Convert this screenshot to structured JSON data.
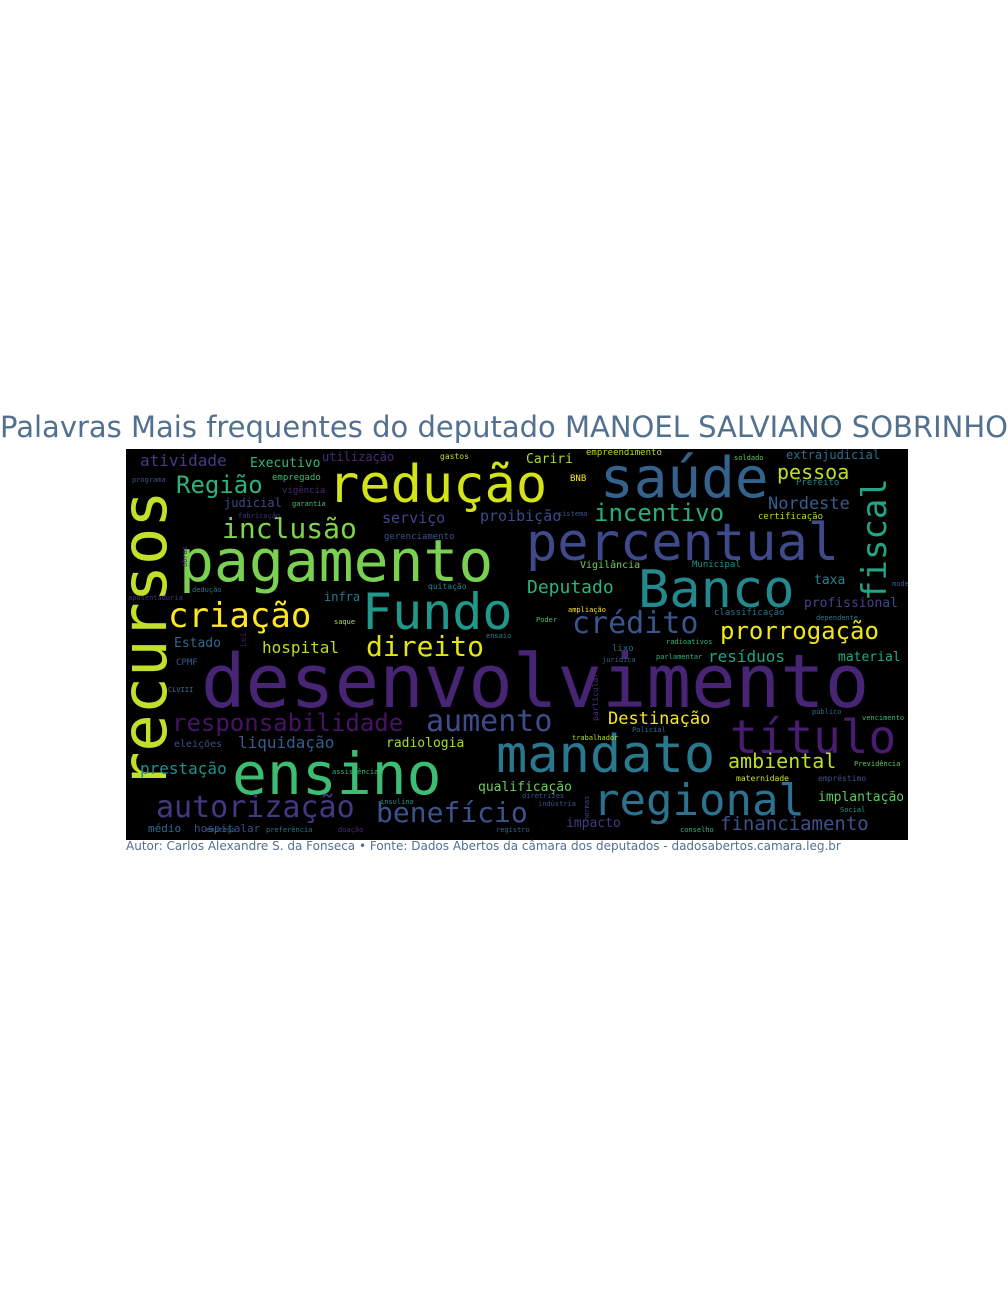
{
  "title": "Palavras Mais frequentes do deputado MANOEL SALVIANO SOBRINHO",
  "caption": "Autor: Carlos Alexandre S. da Fonseca • Fonte: Dados Abertos da câmara dos deputados - dadosabertos.camara.leg.br",
  "wordcloud": {
    "background": "#000000",
    "words": [
      {
        "text": "desenvolvimento",
        "color": "#482475"
      },
      {
        "text": "recursos",
        "color": "#c4df2a"
      },
      {
        "text": "pagamento",
        "color": "#7ad151"
      },
      {
        "text": "redução",
        "color": "#d2e21b"
      },
      {
        "text": "saúde",
        "color": "#33638d"
      },
      {
        "text": "percentual",
        "color": "#3f4a8a"
      },
      {
        "text": "Banco",
        "color": "#23898e"
      },
      {
        "text": "Fundo",
        "color": "#1f998a"
      },
      {
        "text": "ensino",
        "color": "#3dbc74"
      },
      {
        "text": "mandato",
        "color": "#2a788e"
      },
      {
        "text": "título",
        "color": "#481c6e"
      },
      {
        "text": "regional",
        "color": "#2c728e"
      },
      {
        "text": "fiscal",
        "color": "#21a585"
      },
      {
        "text": "criação",
        "color": "#fde725"
      },
      {
        "text": "autorização",
        "color": "#453781"
      },
      {
        "text": "benefício",
        "color": "#3b528b"
      },
      {
        "text": "aumento",
        "color": "#3e4c8a"
      },
      {
        "text": "crédito",
        "color": "#39558c"
      },
      {
        "text": "direito",
        "color": "#e2e418"
      },
      {
        "text": "inclusão",
        "color": "#7fd34e"
      },
      {
        "text": "Região",
        "color": "#2db27d"
      },
      {
        "text": "prorrogação",
        "color": "#f1e51d"
      },
      {
        "text": "responsabilidade",
        "color": "#471365"
      },
      {
        "text": "incentivo",
        "color": "#27ad81"
      },
      {
        "text": "pessoa",
        "color": "#bddf26"
      },
      {
        "text": "ambiental",
        "color": "#c0df25"
      },
      {
        "text": "Nordeste",
        "color": "#355f8d"
      },
      {
        "text": "financiamento",
        "color": "#3b528b"
      },
      {
        "text": "prestação",
        "color": "#21908d"
      },
      {
        "text": "Deputado",
        "color": "#2db27d"
      },
      {
        "text": "Destinação",
        "color": "#f8e621"
      },
      {
        "text": "hospital",
        "color": "#b8de29"
      },
      {
        "text": "liquidação",
        "color": "#365c8d"
      },
      {
        "text": "resíduos",
        "color": "#20a486"
      },
      {
        "text": "atividade",
        "color": "#433e85"
      },
      {
        "text": "serviço",
        "color": "#414487"
      },
      {
        "text": "proibição",
        "color": "#3e4a89"
      },
      {
        "text": "qualificação",
        "color": "#6ece58"
      },
      {
        "text": "implantação",
        "color": "#5ec962"
      },
      {
        "text": "radiologia",
        "color": "#a5db36"
      },
      {
        "text": "Executivo",
        "color": "#35b779"
      },
      {
        "text": "Estado",
        "color": "#31668e"
      },
      {
        "text": "impacto",
        "color": "#443a83"
      },
      {
        "text": "material",
        "color": "#22a884"
      },
      {
        "text": "profissional",
        "color": "#404688"
      },
      {
        "text": "infra",
        "color": "#2a788e"
      },
      {
        "text": "Cariri",
        "color": "#a8db34"
      },
      {
        "text": "taxa",
        "color": "#26828e"
      },
      {
        "text": "hospitalar",
        "color": "#3e4989"
      },
      {
        "text": "médio",
        "color": "#2f6c8e"
      },
      {
        "text": "extrajudicial",
        "color": "#2e6f8e"
      },
      {
        "text": "judicial",
        "color": "#3e4989"
      },
      {
        "text": "utilização",
        "color": "#472d7b"
      },
      {
        "text": "eleições",
        "color": "#3b518b"
      },
      {
        "text": "Vigilância",
        "color": "#75d054"
      },
      {
        "text": "empreendimento",
        "color": "#b5de2b"
      },
      {
        "text": "gerenciamento",
        "color": "#3b528b"
      },
      {
        "text": "classificação",
        "color": "#2c738e"
      },
      {
        "text": "certificação",
        "color": "#b8de29"
      },
      {
        "text": "empregado",
        "color": "#40bd72"
      },
      {
        "text": "vigência",
        "color": "#482677"
      },
      {
        "text": "Prefeito",
        "color": "#23898e"
      },
      {
        "text": "Municipal",
        "color": "#21918c"
      },
      {
        "text": "maternidade",
        "color": "#d0e11c"
      },
      {
        "text": "empréstimo",
        "color": "#3b528b"
      },
      {
        "text": "gastos",
        "color": "#c2df23"
      },
      {
        "text": "lixo",
        "color": "#31688e"
      },
      {
        "text": "CPMF",
        "color": "#38598c"
      },
      {
        "text": "quitação",
        "color": "#26828e"
      },
      {
        "text": "BNB",
        "color": "#fde725"
      },
      {
        "text": "particular",
        "color": "#472c7a"
      },
      {
        "text": "fabricação",
        "color": "#46337f"
      },
      {
        "text": "garantia",
        "color": "#4ac16d"
      },
      {
        "text": "Previdência",
        "color": "#5ec962"
      },
      {
        "text": "radioativos",
        "color": "#35b779"
      },
      {
        "text": "parlamentar",
        "color": "#2db27d"
      },
      {
        "text": "jurídica",
        "color": "#34618d"
      },
      {
        "text": "trabalhador",
        "color": "#b5de2b"
      },
      {
        "text": "Social",
        "color": "#1fa088"
      },
      {
        "text": "dependente",
        "color": "#2a788e"
      },
      {
        "text": "emprego",
        "color": "#2c738e"
      },
      {
        "text": "programa",
        "color": "#3b528b"
      },
      {
        "text": "CLVIII",
        "color": "#2d708e"
      },
      {
        "text": "dedução",
        "color": "#2a768e"
      },
      {
        "text": "assistência",
        "color": "#35b779"
      },
      {
        "text": "ampliação",
        "color": "#fde725"
      },
      {
        "text": "registro",
        "color": "#32658e"
      },
      {
        "text": "saque",
        "color": "#b5de2b"
      },
      {
        "text": "preferência",
        "color": "#2a788e"
      },
      {
        "text": "doação",
        "color": "#472d7b"
      },
      {
        "text": "conselho",
        "color": "#35b779"
      },
      {
        "text": "aposentadoria",
        "color": "#46327e"
      },
      {
        "text": "soldado",
        "color": "#5ec962"
      },
      {
        "text": "insulina",
        "color": "#21918c"
      },
      {
        "text": "sistema",
        "color": "#3b528b"
      },
      {
        "text": "Policial",
        "color": "#2c728e"
      },
      {
        "text": "Poder",
        "color": "#40bd72"
      },
      {
        "text": "vencimento",
        "color": "#35b779"
      },
      {
        "text": "modernização",
        "color": "#34618d"
      },
      {
        "text": "diretrizes",
        "color": "#3b528b"
      },
      {
        "text": "Lei",
        "color": "#481769"
      },
      {
        "text": "público",
        "color": "#31688e"
      },
      {
        "text": "obras",
        "color": "#482878"
      },
      {
        "text": "normas",
        "color": "#3e4989"
      },
      {
        "text": "indústria",
        "color": "#3b528b"
      },
      {
        "text": "ensaio",
        "color": "#26828e"
      }
    ]
  }
}
